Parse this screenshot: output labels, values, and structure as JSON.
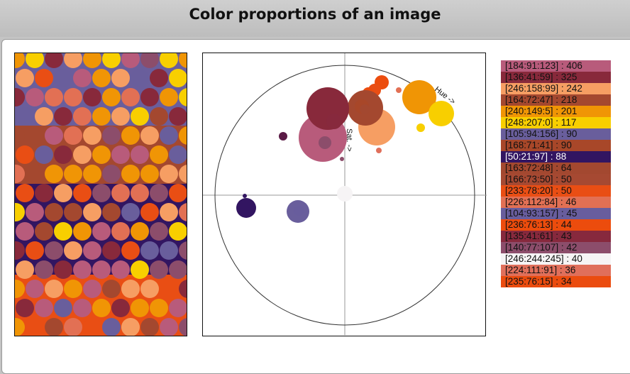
{
  "header": {
    "title": "Color proportions of an image"
  },
  "plot": {
    "hue_axis_label": "Hue ->",
    "sat_axis_label": "Sat. ->"
  },
  "legend": [
    {
      "text": "[184:91:123] : 406",
      "color": "#b85b7b",
      "fg": "#111"
    },
    {
      "text": "[136:41:59] : 325",
      "color": "#88293b",
      "fg": "#111"
    },
    {
      "text": "[246:158:99] : 242",
      "color": "#f69e63",
      "fg": "#111"
    },
    {
      "text": "[164:72:47] : 218",
      "color": "#a4482f",
      "fg": "#111"
    },
    {
      "text": "[240:149:5] : 201",
      "color": "#f09505",
      "fg": "#111"
    },
    {
      "text": "[248:207:0] : 117",
      "color": "#f8cf00",
      "fg": "#111"
    },
    {
      "text": "[105:94:156] : 90",
      "color": "#695e9c",
      "fg": "#111"
    },
    {
      "text": "[168:71:41] : 90",
      "color": "#a84729",
      "fg": "#111"
    },
    {
      "text": "[50:21:97] : 88",
      "color": "#321561",
      "fg": "#ffffff"
    },
    {
      "text": "[163:72:48] : 64",
      "color": "#a34830",
      "fg": "#111"
    },
    {
      "text": "[166:73:50] : 50",
      "color": "#a64932",
      "fg": "#111"
    },
    {
      "text": "[233:78:20] : 50",
      "color": "#e94e14",
      "fg": "#111"
    },
    {
      "text": "[226:112:84] : 46",
      "color": "#e27054",
      "fg": "#111"
    },
    {
      "text": "[104:93:157] : 45",
      "color": "#685d9d",
      "fg": "#111"
    },
    {
      "text": "[236:76:13] : 44",
      "color": "#ec4c0d",
      "fg": "#111"
    },
    {
      "text": "[135:41:61] : 43",
      "color": "#87293d",
      "fg": "#111"
    },
    {
      "text": "[140:77:107] : 42",
      "color": "#8c4d6b",
      "fg": "#111"
    },
    {
      "text": "[246:244:245] : 40",
      "color": "#f6f4f5",
      "fg": "#111"
    },
    {
      "text": "[224:111:91] : 36",
      "color": "#e06f5b",
      "fg": "#111"
    },
    {
      "text": "[235:76:15] : 34",
      "color": "#eb4c0f",
      "fg": "#111"
    }
  ]
}
